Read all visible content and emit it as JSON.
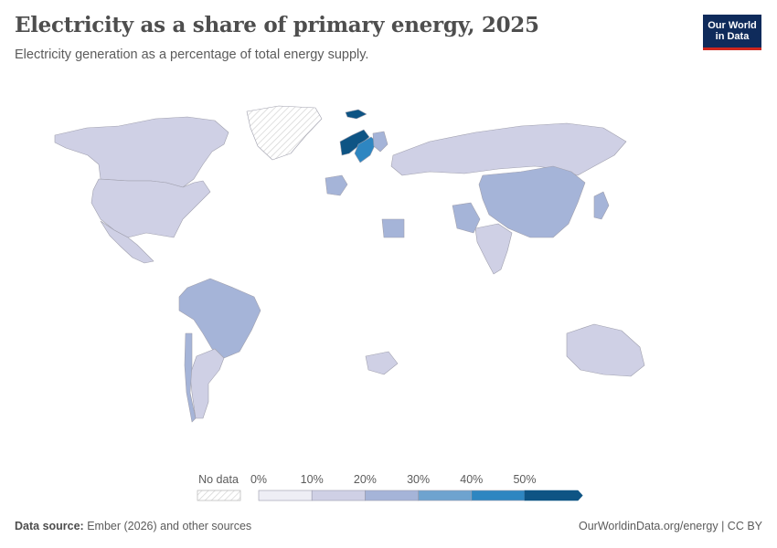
{
  "header": {
    "title": "Electricity as a share of primary energy, 2025",
    "subtitle": "Electricity generation as a percentage of total energy supply."
  },
  "logo": {
    "line1": "Our World",
    "line2": "in Data"
  },
  "map_data": {
    "type": "choropleth",
    "projection": "robinson",
    "colors": {
      "no_data": "#e6e6e6",
      "b0": "#eeeef5",
      "b10": "#cfd0e5",
      "b20": "#a5b4d8",
      "b30": "#6ea3cf",
      "b40": "#2e86c1",
      "b50": "#0e5484"
    },
    "legend": {
      "no_data_label": "No data",
      "ticks": [
        "0%",
        "10%",
        "20%",
        "30%",
        "40%",
        "50%"
      ]
    },
    "regions": [
      {
        "name": "United States",
        "bin": "b10"
      },
      {
        "name": "Canada",
        "bin": "b10"
      },
      {
        "name": "Mexico",
        "bin": "b10"
      },
      {
        "name": "Brazil",
        "bin": "b20"
      },
      {
        "name": "Chile",
        "bin": "b20"
      },
      {
        "name": "Argentina",
        "bin": "b10"
      },
      {
        "name": "Russia",
        "bin": "b10"
      },
      {
        "name": "China",
        "bin": "b20"
      },
      {
        "name": "India",
        "bin": "b10"
      },
      {
        "name": "Pakistan",
        "bin": "b20"
      },
      {
        "name": "Egypt",
        "bin": "b20"
      },
      {
        "name": "Norway",
        "bin": "b50"
      },
      {
        "name": "Sweden",
        "bin": "b40"
      },
      {
        "name": "Finland",
        "bin": "b20"
      },
      {
        "name": "Iceland",
        "bin": "b50"
      },
      {
        "name": "France",
        "bin": "b20"
      },
      {
        "name": "Japan",
        "bin": "b20"
      },
      {
        "name": "Australia",
        "bin": "b10"
      },
      {
        "name": "South Africa",
        "bin": "b10"
      },
      {
        "name": "Greenland",
        "bin": "no_data"
      }
    ]
  },
  "footer": {
    "source_label": "Data source:",
    "source_text": "Ember (2026) and other sources",
    "url": "OurWorldinData.org/energy | CC BY"
  }
}
